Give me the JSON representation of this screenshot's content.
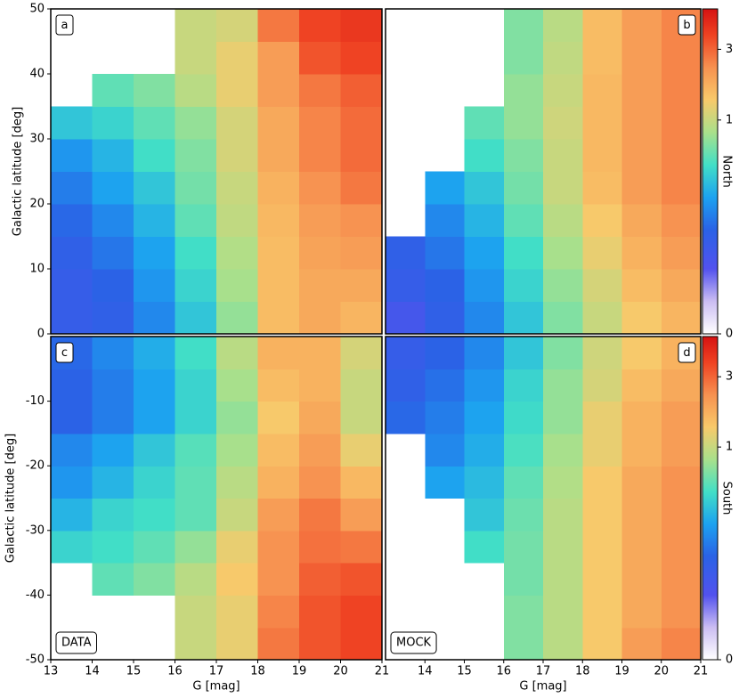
{
  "chart_data": [
    {
      "type": "heatmap",
      "panel_label": "a",
      "ylabel": "Galactic latitude [deg]",
      "xbins": [
        13,
        14,
        15,
        16,
        17,
        18,
        19,
        20,
        21
      ],
      "ybins": [
        0,
        5,
        10,
        15,
        20,
        25,
        30,
        35,
        40,
        45,
        50
      ],
      "xlim": [
        13,
        21
      ],
      "ylim": [
        0,
        50
      ],
      "yticks": [
        0,
        10,
        20,
        30,
        40,
        50
      ],
      "colormap": "rainbow",
      "norm": "power",
      "gamma": 0.26,
      "clim": [
        0,
        5
      ],
      "values": [
        [
          0.04,
          0.05,
          0.12,
          0.29,
          0.7,
          1.6,
          1.9,
          1.7
        ],
        [
          0.04,
          0.06,
          0.15,
          0.35,
          0.79,
          1.6,
          1.9,
          1.9
        ],
        [
          0.05,
          0.09,
          0.18,
          0.4,
          0.85,
          1.6,
          2.0,
          2.1
        ],
        [
          0.07,
          0.12,
          0.23,
          0.5,
          0.95,
          1.65,
          2.1,
          2.3
        ],
        [
          0.1,
          0.18,
          0.29,
          0.57,
          1.0,
          1.75,
          2.3,
          2.7
        ],
        [
          0.15,
          0.23,
          0.4,
          0.62,
          1.1,
          1.9,
          2.5,
          2.9
        ],
        [
          0.29,
          0.35,
          0.5,
          0.7,
          1.1,
          1.9,
          2.5,
          2.9
        ],
        [
          null,
          0.5,
          0.62,
          0.9,
          1.27,
          2.1,
          2.7,
          3.1
        ],
        [
          null,
          null,
          null,
          1.0,
          1.27,
          2.1,
          3.3,
          3.6
        ],
        [
          null,
          null,
          null,
          1.0,
          1.1,
          2.7,
          3.6,
          3.9
        ]
      ]
    },
    {
      "type": "heatmap",
      "panel_label": "b",
      "xbins": [
        13,
        14,
        15,
        16,
        17,
        18,
        19,
        20,
        21
      ],
      "ybins": [
        0,
        5,
        10,
        15,
        20,
        25,
        30,
        35,
        40,
        45,
        50
      ],
      "xlim": [
        13,
        21
      ],
      "ylim": [
        0,
        50
      ],
      "colormap": "rainbow",
      "norm": "power",
      "gamma": 0.26,
      "clim": [
        0,
        5
      ],
      "colorbar": {
        "label": "North",
        "ticks": [
          0,
          1,
          3
        ]
      },
      "values": [
        [
          0.02,
          0.05,
          0.12,
          0.29,
          0.62,
          1.0,
          1.4,
          1.7
        ],
        [
          0.04,
          0.06,
          0.15,
          0.35,
          0.7,
          1.1,
          1.6,
          1.9
        ],
        [
          0.05,
          0.09,
          0.18,
          0.4,
          0.79,
          1.27,
          1.75,
          2.1
        ],
        [
          null,
          0.12,
          0.23,
          0.5,
          0.9,
          1.4,
          1.9,
          2.3
        ],
        [
          null,
          0.18,
          0.29,
          0.57,
          1.0,
          1.6,
          2.1,
          2.5
        ],
        [
          null,
          null,
          0.4,
          0.62,
          1.0,
          1.65,
          2.1,
          2.5
        ],
        [
          null,
          null,
          0.5,
          0.7,
          1.05,
          1.65,
          2.1,
          2.5
        ],
        [
          null,
          null,
          null,
          0.7,
          1.0,
          1.65,
          2.1,
          2.5
        ],
        [
          null,
          null,
          null,
          0.62,
          0.95,
          1.6,
          2.1,
          2.5
        ],
        [
          null,
          null,
          null,
          0.62,
          0.9,
          1.6,
          2.1,
          2.5
        ]
      ]
    },
    {
      "type": "heatmap",
      "panel_label": "c",
      "annotation": "DATA",
      "ylabel": "Galactic latitude [deg]",
      "xlabel": "G [mag]",
      "xbins": [
        13,
        14,
        15,
        16,
        17,
        18,
        19,
        20,
        21
      ],
      "ybins": [
        -50,
        -45,
        -40,
        -35,
        -30,
        -25,
        -20,
        -15,
        -10,
        -5,
        0
      ],
      "xlim": [
        13,
        21
      ],
      "ylim": [
        -50,
        0
      ],
      "xticks": [
        13,
        14,
        15,
        16,
        17,
        18,
        19,
        20,
        21
      ],
      "yticks": [
        -50,
        -40,
        -30,
        -20,
        -10
      ],
      "colormap": "rainbow",
      "norm": "power",
      "gamma": 0.26,
      "clim": [
        0,
        5
      ],
      "values": [
        [
          null,
          null,
          null,
          1.0,
          1.27,
          2.7,
          3.3,
          3.6
        ],
        [
          null,
          null,
          null,
          1.0,
          1.27,
          2.5,
          3.3,
          3.6
        ],
        [
          null,
          0.5,
          0.62,
          0.9,
          1.4,
          2.3,
          3.1,
          3.3
        ],
        [
          0.35,
          0.4,
          0.5,
          0.7,
          1.27,
          2.3,
          2.8,
          2.7
        ],
        [
          0.23,
          0.35,
          0.4,
          0.5,
          1.0,
          2.1,
          2.7,
          2.1
        ],
        [
          0.15,
          0.23,
          0.35,
          0.5,
          0.9,
          1.75,
          2.3,
          1.65
        ],
        [
          0.12,
          0.18,
          0.29,
          0.47,
          0.79,
          1.6,
          2.1,
          1.27
        ],
        [
          0.06,
          0.1,
          0.18,
          0.35,
          0.7,
          1.4,
          1.9,
          1.0
        ],
        [
          0.06,
          0.1,
          0.18,
          0.35,
          0.79,
          1.6,
          1.75,
          1.0
        ],
        [
          0.07,
          0.12,
          0.21,
          0.4,
          0.9,
          1.75,
          1.75,
          1.1
        ]
      ]
    },
    {
      "type": "heatmap",
      "panel_label": "d",
      "annotation": "MOCK",
      "xlabel": "G [mag]",
      "xbins": [
        13,
        14,
        15,
        16,
        17,
        18,
        19,
        20,
        21
      ],
      "ybins": [
        -50,
        -45,
        -40,
        -35,
        -30,
        -25,
        -20,
        -15,
        -10,
        -5,
        0
      ],
      "xlim": [
        13,
        21
      ],
      "ylim": [
        -50,
        0
      ],
      "xticks": [
        14,
        15,
        16,
        17,
        18,
        19,
        20,
        21
      ],
      "colormap": "rainbow",
      "norm": "power",
      "gamma": 0.26,
      "clim": [
        0,
        5
      ],
      "colorbar": {
        "label": "South",
        "ticks": [
          0,
          1,
          3
        ]
      },
      "values": [
        [
          null,
          null,
          null,
          0.62,
          0.9,
          1.4,
          2.1,
          2.5
        ],
        [
          null,
          null,
          null,
          0.62,
          0.9,
          1.4,
          1.9,
          2.3
        ],
        [
          null,
          null,
          null,
          0.57,
          0.9,
          1.4,
          1.9,
          2.3
        ],
        [
          null,
          null,
          0.4,
          0.57,
          0.9,
          1.4,
          1.9,
          2.3
        ],
        [
          null,
          null,
          0.29,
          0.54,
          0.9,
          1.4,
          1.9,
          2.3
        ],
        [
          null,
          0.18,
          0.25,
          0.5,
          0.85,
          1.4,
          1.9,
          2.3
        ],
        [
          null,
          0.12,
          0.21,
          0.43,
          0.79,
          1.27,
          1.75,
          2.1
        ],
        [
          0.07,
          0.1,
          0.18,
          0.38,
          0.7,
          1.27,
          1.75,
          2.1
        ],
        [
          0.05,
          0.08,
          0.15,
          0.35,
          0.7,
          1.1,
          1.6,
          1.9
        ],
        [
          0.04,
          0.06,
          0.12,
          0.29,
          0.62,
          1.05,
          1.4,
          1.75
        ]
      ]
    }
  ]
}
